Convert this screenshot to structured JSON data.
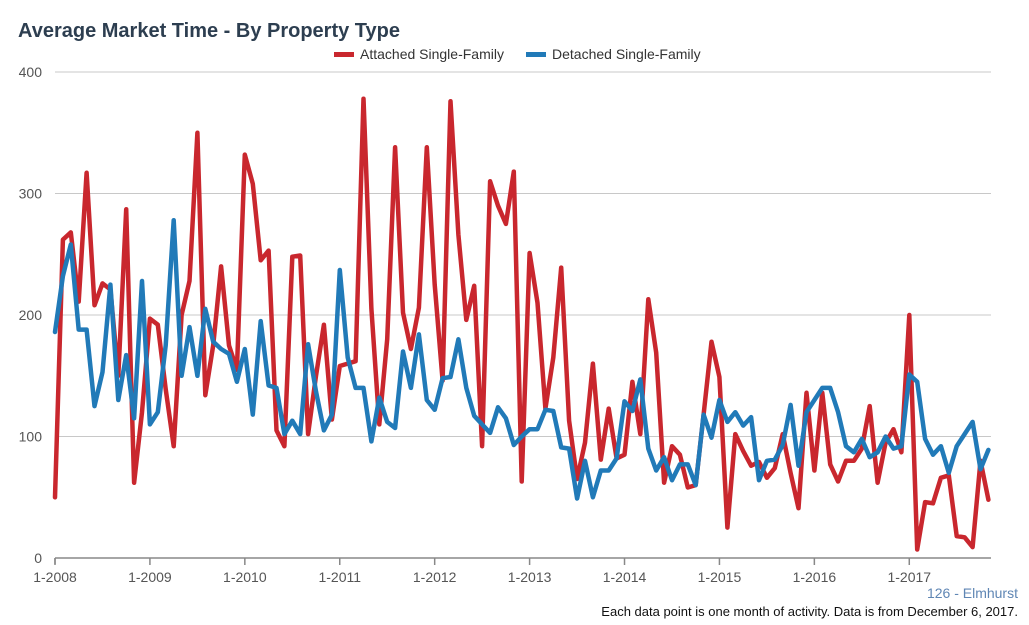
{
  "title": "Average Market Time - By Property Type",
  "region_label": "126 - Elmhurst",
  "footnote": "Each data point is one month of activity. Data is from December 6, 2017.",
  "colors": {
    "attached": "#c9272e",
    "detached": "#217ab8",
    "grid": "#c8c8c8",
    "axis": "#888888",
    "tick_text": "#555555"
  },
  "chart_data": {
    "type": "line",
    "title": "Average Market Time - By Property Type",
    "xlabel": "",
    "ylabel": "",
    "ylim": [
      0,
      400
    ],
    "yticks": [
      0,
      100,
      200,
      300,
      400
    ],
    "xticks": [
      "1-2008",
      "1-2009",
      "1-2010",
      "1-2011",
      "1-2012",
      "1-2013",
      "1-2014",
      "1-2015",
      "1-2016",
      "1-2017"
    ],
    "x_start": "1-2008",
    "x_end": "11-2017",
    "grid": true,
    "legend": "top-center",
    "series": [
      {
        "name": "Attached Single-Family",
        "color": "#c9272e",
        "values": [
          50,
          262,
          268,
          211,
          317,
          208,
          226,
          221,
          150,
          287,
          62,
          120,
          197,
          192,
          139,
          92,
          200,
          228,
          350,
          134,
          175,
          240,
          175,
          155,
          332,
          308,
          245,
          253,
          105,
          92,
          248,
          249,
          102,
          150,
          192,
          114,
          158,
          160,
          162,
          378,
          205,
          110,
          180,
          338,
          202,
          172,
          206,
          338,
          225,
          146,
          376,
          266,
          196,
          224,
          92,
          310,
          290,
          275,
          318,
          63,
          251,
          210,
          123,
          165,
          239,
          113,
          65,
          95,
          160,
          81,
          123,
          82,
          85,
          145,
          102,
          213,
          169,
          62,
          92,
          85,
          58,
          60,
          118,
          178,
          149,
          25,
          102,
          88,
          76,
          79,
          66,
          74,
          102,
          70,
          41,
          136,
          72,
          136,
          77,
          63,
          80,
          80,
          90,
          125,
          62,
          95,
          106,
          87,
          200,
          7,
          46,
          45,
          66,
          68,
          18,
          17,
          9,
          80,
          48
        ]
      },
      {
        "name": "Detached Single-Family",
        "color": "#217ab8",
        "values": [
          186,
          232,
          258,
          188,
          188,
          125,
          153,
          225,
          130,
          167,
          115,
          228,
          110,
          120,
          175,
          278,
          150,
          190,
          150,
          205,
          178,
          172,
          168,
          145,
          172,
          118,
          195,
          142,
          140,
          102,
          113,
          102,
          176,
          137,
          105,
          118,
          237,
          165,
          140,
          140,
          96,
          132,
          112,
          107,
          170,
          140,
          184,
          130,
          122,
          148,
          149,
          180,
          140,
          117,
          110,
          103,
          124,
          115,
          93,
          100,
          106,
          106,
          122,
          121,
          91,
          90,
          49,
          80,
          50,
          72,
          72,
          82,
          129,
          121,
          147,
          90,
          72,
          83,
          64,
          77,
          77,
          60,
          118,
          99,
          130,
          112,
          120,
          109,
          116,
          64,
          80,
          81,
          93,
          126,
          76,
          120,
          130,
          140,
          140,
          120,
          92,
          87,
          98,
          83,
          87,
          100,
          90,
          92,
          151,
          145,
          98,
          85,
          92,
          70,
          92,
          102,
          112,
          73,
          89
        ]
      }
    ]
  }
}
